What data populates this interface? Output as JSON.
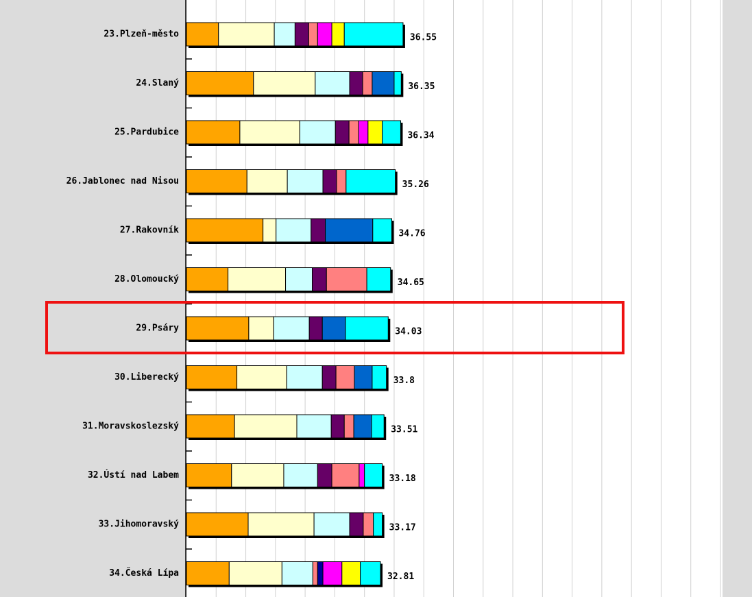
{
  "chart_data": {
    "type": "stacked-barh",
    "categories": [
      "23.Plzeň-město",
      "24.Slaný",
      "25.Pardubice",
      "26.Jablonec nad Nisou",
      "27.Rakovník",
      "28.Olomoucký",
      "29.Psáry",
      "30.Liberecký",
      "31.Moravskoslezský",
      "32.Ústí nad Labem",
      "33.Jihomoravský",
      "34.Česká Lípa"
    ],
    "totals": [
      36.55,
      36.35,
      36.34,
      35.26,
      34.76,
      34.65,
      34.03,
      33.8,
      33.51,
      33.18,
      33.17,
      32.81
    ],
    "series": [
      {
        "color": "#ffa500",
        "values": [
          5.4,
          11.3,
          9.0,
          10.2,
          12.9,
          7.0,
          10.5,
          8.5,
          8.1,
          7.6,
          10.4,
          7.2
        ]
      },
      {
        "color": "#ffffcc",
        "values": [
          9.4,
          10.4,
          10.1,
          6.8,
          2.2,
          9.7,
          4.2,
          8.4,
          10.5,
          8.8,
          11.1,
          8.9
        ]
      },
      {
        "color": "#ccffff",
        "values": [
          3.5,
          5.8,
          6.0,
          6.0,
          5.9,
          4.5,
          6.0,
          6.0,
          5.8,
          5.7,
          6.0,
          5.2
        ]
      },
      {
        "color": "#660066",
        "values": [
          2.3,
          2.2,
          2.3,
          2.3,
          2.4,
          2.4,
          2.2,
          2.3,
          2.2,
          2.4,
          2.3,
          0
        ]
      },
      {
        "color": "#ff8080",
        "values": [
          1.5,
          1.6,
          1.6,
          1.6,
          0,
          6.8,
          0,
          3.1,
          1.6,
          4.6,
          1.7,
          0.8
        ]
      },
      {
        "color": "#000099",
        "values": [
          0,
          0,
          0,
          0,
          0,
          0,
          0,
          0,
          0,
          0,
          0,
          0.9
        ]
      },
      {
        "color": "#ff00ff",
        "values": [
          2.4,
          0,
          1.6,
          0,
          0,
          0,
          0,
          0,
          0,
          0.9,
          0,
          3.2
        ]
      },
      {
        "color": "#ffff00",
        "values": [
          2.1,
          0,
          2.4,
          0,
          0,
          0,
          0,
          0,
          0,
          0,
          0,
          3.1
        ]
      },
      {
        "color": "#0066cc",
        "values": [
          0,
          3.7,
          0,
          0,
          8.0,
          0,
          3.9,
          3.0,
          3.0,
          0,
          0,
          0
        ]
      },
      {
        "color": "#00ffff",
        "values": [
          9.9,
          1.2,
          3.1,
          8.3,
          3.2,
          4.0,
          7.2,
          2.4,
          2.1,
          3.0,
          1.5,
          3.4
        ]
      }
    ],
    "xlim": [
      0,
      90
    ],
    "xticks": [
      0,
      5,
      10,
      15,
      20,
      25,
      30,
      35,
      40,
      45,
      50,
      55,
      60,
      65,
      70,
      75,
      80,
      85,
      90
    ],
    "grid": true
  }
}
